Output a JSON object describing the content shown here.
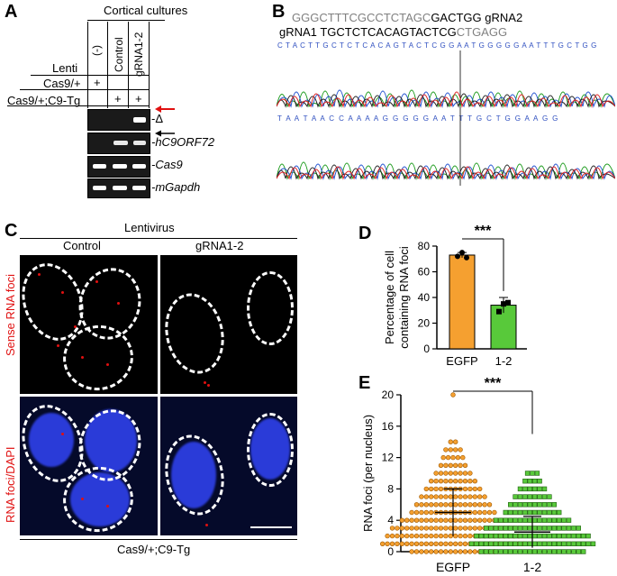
{
  "panels": {
    "a": "A",
    "b": "B",
    "c": "C",
    "d": "D",
    "e": "E"
  },
  "panel_a": {
    "header": "Cortical cultures",
    "lanes": [
      "(-)",
      "Control",
      "gRNA1-2"
    ],
    "rows": [
      {
        "label": "Lenti",
        "marks": [
          "",
          "",
          ""
        ]
      },
      {
        "label": "Cas9/+",
        "marks": [
          "+",
          "",
          ""
        ]
      },
      {
        "label": "Cas9/+;C9-Tg",
        "marks": [
          "",
          "+",
          "+"
        ]
      }
    ],
    "band_labels": [
      "-Δ",
      "-hC9ORF72",
      "-Cas9",
      "-mGapdh"
    ]
  },
  "panel_b": {
    "grna2_seq": "GGGCTTTCGCCTCTAGC",
    "grna2_seq_tail": "GACTGG",
    "grna2_label": "gRNA2",
    "grna1_label": "gRNA1",
    "grna1_seq": "TGCTCTCACAGTACTCG",
    "grna1_seq_tail": "CTGAGG",
    "trace_top": "C T A C T T G C T C T C A C A G T A C T C G G A A T G G G G G A A T T T G C T G G",
    "trace_bottom": "T A A T A A C C A A A A G G G G G A A T T T G C T G G A A G G"
  },
  "panel_c": {
    "header": "Lentivirus",
    "columns": [
      "Control",
      "gRNA1-2"
    ],
    "row_labels": [
      "Sense RNA foci",
      "RNA foci/DAPI"
    ],
    "footer": "Cas9/+;C9-Tg"
  },
  "chart_data": [
    {
      "type": "bar",
      "ylabel": "Percentage of cell containing RNA foci",
      "categories": [
        "EGFP",
        "1-2"
      ],
      "values": [
        73,
        34
      ],
      "errors": [
        2,
        6
      ],
      "points": [
        [
          72,
          75,
          71
        ],
        [
          29,
          35,
          36
        ]
      ],
      "ylim": [
        0,
        80
      ],
      "yticks": [
        0,
        20,
        40,
        60,
        80
      ],
      "colors": [
        "#f5a030",
        "#58c93a"
      ],
      "significance": "***"
    },
    {
      "type": "scatter",
      "ylabel": "RNA foci (per nucleus)",
      "categories": [
        "EGFP",
        "1-2"
      ],
      "ylim": [
        0,
        20
      ],
      "yticks": [
        0,
        4,
        8,
        12,
        16,
        20
      ],
      "distribution": [
        [
          18,
          30,
          28,
          26,
          22,
          18,
          16,
          14,
          12,
          10,
          8,
          6,
          5,
          4,
          2,
          0,
          0,
          0,
          0,
          0,
          1
        ],
        [
          22,
          26,
          24,
          20,
          16,
          12,
          10,
          8,
          6,
          4,
          3,
          0,
          0,
          0,
          0,
          0,
          0,
          0,
          0,
          0,
          0
        ]
      ],
      "means": [
        5,
        2.5
      ],
      "sds": [
        3,
        2
      ],
      "colors": [
        "#f5a030",
        "#58c93a"
      ],
      "significance": "***"
    }
  ]
}
